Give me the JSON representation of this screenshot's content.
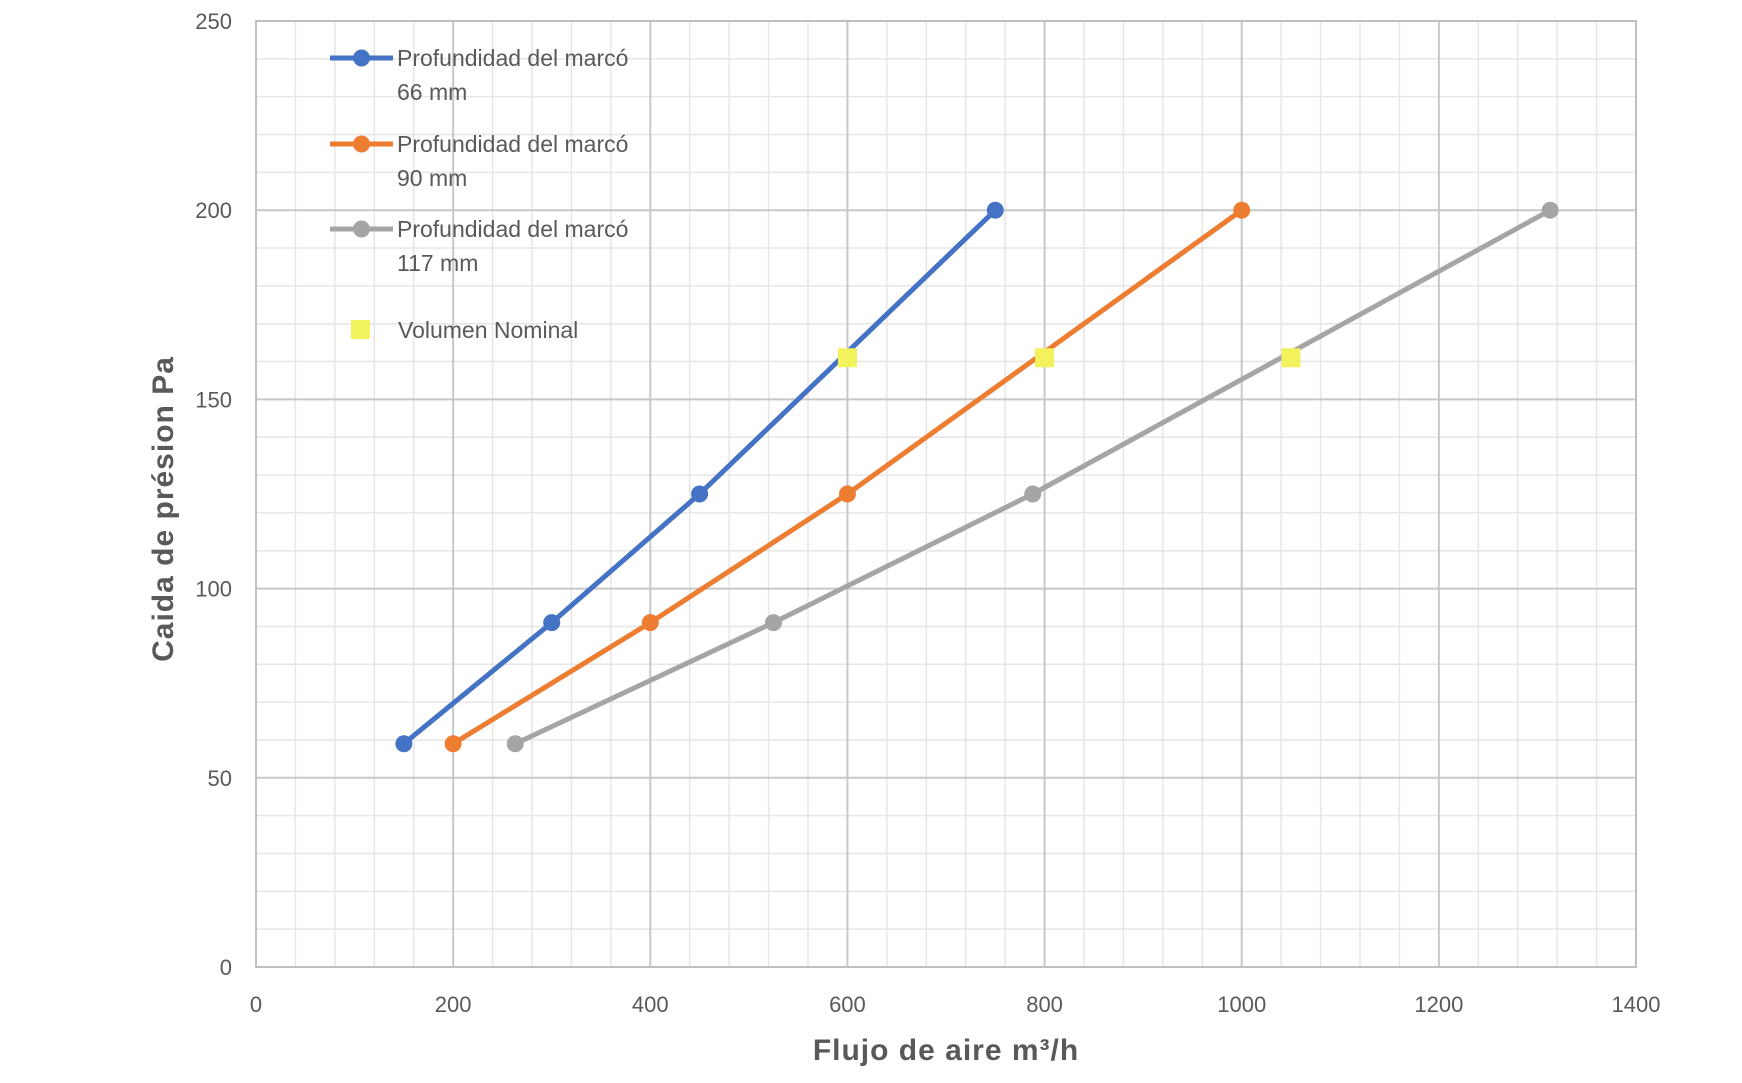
{
  "chart_data": {
    "type": "line",
    "title": "",
    "xlabel": "Flujo de aire m³/h",
    "ylabel": "Caida de présion Pa",
    "xlim": [
      0,
      1400
    ],
    "ylim": [
      0,
      250
    ],
    "x_ticks": [
      0,
      200,
      400,
      600,
      800,
      1000,
      1200,
      1400
    ],
    "y_ticks": [
      0,
      50,
      100,
      150,
      200,
      250
    ],
    "x_minor_step": 40,
    "y_minor_step": 10,
    "grid": true,
    "legend_position": "top-left",
    "series": [
      {
        "name_line1": "Profundidad del marcó",
        "name_line2": "66 mm",
        "color": "#4472C4",
        "marker": "circle",
        "points": [
          [
            150,
            59
          ],
          [
            300,
            91
          ],
          [
            450,
            125
          ],
          [
            750,
            200
          ]
        ]
      },
      {
        "name_line1": "Profundidad del marcó",
        "name_line2": "90 mm",
        "color": "#ED7D31",
        "marker": "circle",
        "points": [
          [
            200,
            59
          ],
          [
            400,
            91
          ],
          [
            600,
            125
          ],
          [
            1000,
            200
          ]
        ]
      },
      {
        "name_line1": "Profundidad del marcó",
        "name_line2": "117 mm",
        "color": "#A5A5A5",
        "marker": "circle",
        "points": [
          [
            263,
            59
          ],
          [
            525,
            91
          ],
          [
            788,
            125
          ],
          [
            1313,
            200
          ]
        ]
      }
    ],
    "nominal": {
      "name": "Volumen Nominal",
      "color": "#F2F25C",
      "marker": "square",
      "points": [
        [
          600,
          161
        ],
        [
          800,
          161
        ],
        [
          1050,
          161
        ]
      ]
    }
  }
}
